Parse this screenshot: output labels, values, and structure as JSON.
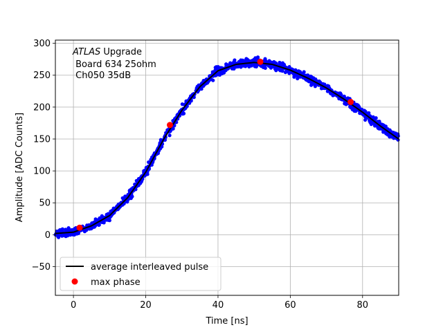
{
  "chart_data": {
    "type": "scatter",
    "xlabel": "Time [ns]",
    "ylabel": "Amplitude [ADC Counts]",
    "xlim": [
      -5,
      90
    ],
    "ylim": [
      -95,
      305
    ],
    "xticks": [
      0,
      20,
      40,
      60,
      80
    ],
    "yticks": [
      -50,
      0,
      50,
      100,
      150,
      200,
      250,
      300
    ],
    "grid": true,
    "legend_position": "lower-left",
    "annotation": {
      "experiment": "ATLAS",
      "line1_rest": " Upgrade",
      "line2": " Board 634 25ohm",
      "line3": " Ch050 35dB"
    },
    "series": [
      {
        "label": "average interleaved pulse",
        "kind": "line",
        "color": "#000000",
        "x": [
          -5,
          0,
          5,
          10,
          15,
          20,
          25,
          30,
          35,
          40,
          45,
          50,
          55,
          60,
          65,
          70,
          75,
          80,
          85,
          90
        ],
        "y": [
          2,
          4,
          14,
          30,
          58,
          98,
          150,
          195,
          232,
          257,
          267,
          270,
          267,
          258,
          245,
          230,
          212,
          192,
          170,
          150
        ]
      },
      {
        "label": "max phase",
        "kind": "scatter",
        "color": "#ff0000",
        "x": [
          1.7,
          26.7,
          51.7,
          76.7
        ],
        "y": [
          11,
          172,
          271,
          208
        ]
      },
      {
        "label": "",
        "kind": "scatter-dense",
        "color": "#0000ff"
      }
    ]
  }
}
